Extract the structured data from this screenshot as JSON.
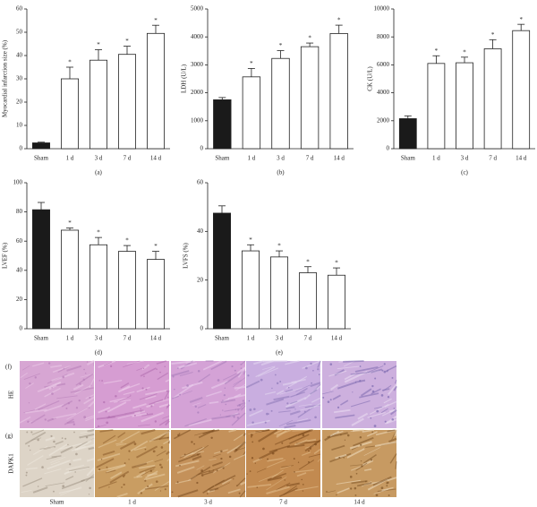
{
  "chart_data": [
    {
      "type": "bar",
      "panel_label": "(a)",
      "ylabel": "Myocardial infarction size (%)",
      "categories": [
        "Sham",
        "1 d",
        "3 d",
        "7 d",
        "14 d"
      ],
      "values": [
        2.5,
        30,
        38,
        40.5,
        49.5
      ],
      "errors": [
        0.3,
        5,
        4.5,
        3.5,
        3.5
      ],
      "significance": [
        null,
        "*",
        "*",
        "*",
        "*"
      ],
      "colors": [
        "#1a1a1a",
        "#ffffff",
        "#ffffff",
        "#ffffff",
        "#ffffff"
      ],
      "ylim": [
        0,
        60
      ],
      "yticks": [
        0,
        10,
        20,
        30,
        40,
        50,
        60
      ]
    },
    {
      "type": "bar",
      "panel_label": "(b)",
      "ylabel": "LDH (U/L)",
      "categories": [
        "Sham",
        "1 d",
        "3 d",
        "7 d",
        "14 d"
      ],
      "values": [
        1750,
        2570,
        3230,
        3650,
        4120
      ],
      "errors": [
        80,
        300,
        280,
        130,
        300
      ],
      "significance": [
        null,
        "*",
        "*",
        "*",
        "*"
      ],
      "colors": [
        "#1a1a1a",
        "#ffffff",
        "#ffffff",
        "#ffffff",
        "#ffffff"
      ],
      "ylim": [
        0,
        5000
      ],
      "yticks": [
        0,
        1000,
        2000,
        3000,
        4000,
        5000
      ]
    },
    {
      "type": "bar",
      "panel_label": "(c)",
      "ylabel": "CK (U/L)",
      "categories": [
        "Sham",
        "1 d",
        "3 d",
        "7 d",
        "14 d"
      ],
      "values": [
        2150,
        6100,
        6150,
        7150,
        8450
      ],
      "errors": [
        200,
        550,
        400,
        650,
        450
      ],
      "significance": [
        null,
        "*",
        "*",
        "*",
        "*"
      ],
      "colors": [
        "#1a1a1a",
        "#ffffff",
        "#ffffff",
        "#ffffff",
        "#ffffff"
      ],
      "ylim": [
        0,
        10000
      ],
      "yticks": [
        0,
        2000,
        4000,
        6000,
        8000,
        10000
      ]
    },
    {
      "type": "bar",
      "panel_label": "(d)",
      "ylabel": "LVEF (%)",
      "categories": [
        "Sham",
        "1 d",
        "3 d",
        "7 d",
        "14 d"
      ],
      "values": [
        81.5,
        67.5,
        57.5,
        53,
        47.5
      ],
      "errors": [
        5,
        1.5,
        5,
        4,
        5.5
      ],
      "significance": [
        null,
        "*",
        "*",
        "*",
        "*"
      ],
      "colors": [
        "#1a1a1a",
        "#ffffff",
        "#ffffff",
        "#ffffff",
        "#ffffff"
      ],
      "ylim": [
        0,
        100
      ],
      "yticks": [
        0,
        20,
        40,
        60,
        80,
        100
      ]
    },
    {
      "type": "bar",
      "panel_label": "(e)",
      "ylabel": "LVFS (%)",
      "categories": [
        "Sham",
        "1 d",
        "3 d",
        "7 d",
        "14 d"
      ],
      "values": [
        47.5,
        32,
        29.5,
        23,
        22
      ],
      "errors": [
        3,
        2.5,
        2.5,
        2.5,
        3
      ],
      "significance": [
        null,
        "*",
        "*",
        "*",
        "*"
      ],
      "colors": [
        "#1a1a1a",
        "#ffffff",
        "#ffffff",
        "#ffffff",
        "#ffffff"
      ],
      "ylim": [
        0,
        60
      ],
      "yticks": [
        0,
        20,
        40,
        60
      ]
    }
  ],
  "histology": {
    "row_panels": [
      "(f)",
      "(g)"
    ],
    "row_labels": [
      "HE",
      "DAPK1"
    ],
    "columns": [
      "Sham",
      "1 d",
      "3 d",
      "7 d",
      "14 d"
    ]
  }
}
